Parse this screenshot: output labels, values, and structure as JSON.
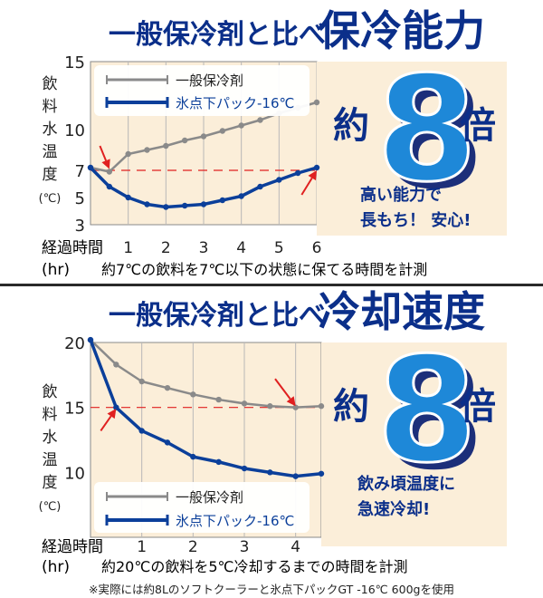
{
  "colors": {
    "comparison_series": "#8a8a8a",
    "product_series": "#0b3f9a",
    "threshold": "#e02020",
    "arrow": "#e02020",
    "chart_background": "#fbeed9",
    "big_number": "#1e88d8",
    "big_number_outline": "#1c2f7a",
    "headline": "#0b2f8a",
    "caption": "#0b2f8a"
  },
  "icons": [
    "red-arrow-icon"
  ],
  "panels": [
    {
      "headline": "一般保冷剤と比べ",
      "headline_strong": "保冷能力",
      "multiplier_prefix": "約",
      "multiplier": "8",
      "multiplier_suffix": "倍",
      "caption_lines": [
        "高い能力で",
        "長もち！ 安心!"
      ],
      "subtitle": "約7℃の飲料を7℃以下の状態に保てる時間を計測"
    },
    {
      "headline": "一般保冷剤と比べ",
      "headline_strong": "冷却速度",
      "multiplier_prefix": "約",
      "multiplier": "8",
      "multiplier_suffix": "倍",
      "caption_lines": [
        "飲み頃温度に",
        "急速冷却!"
      ],
      "subtitle": "約20℃の飲料を5℃冷却するまでの時間を計測"
    }
  ],
  "footnote": "※実際には約8Lのソフトクーラーと氷点下パックGT -16℃ 600gを使用",
  "chart_data": [
    {
      "type": "line",
      "ylabel": [
        "飲",
        "料",
        "水",
        "温",
        "度",
        "(℃)"
      ],
      "xlabel": [
        "経過時間",
        "(hr)"
      ],
      "x_ticks": [
        "1",
        "2",
        "3",
        "4",
        "5",
        "6"
      ],
      "y_ticks": [
        "15",
        "10",
        "7",
        "5",
        "3"
      ],
      "y_tick_values": [
        15,
        10,
        7,
        5,
        3
      ],
      "xlim": [
        0,
        6
      ],
      "ylim": [
        3,
        15
      ],
      "threshold": 7,
      "legend_position": "top-left",
      "series": [
        {
          "name": "一般保冷剤",
          "color_key": "comparison_series",
          "x": [
            0,
            0.5,
            1,
            1.5,
            2,
            2.5,
            3,
            3.5,
            4,
            4.5,
            5,
            5.5,
            6
          ],
          "y": [
            7.2,
            6.9,
            8.2,
            8.5,
            8.8,
            9.2,
            9.5,
            9.9,
            10.3,
            10.7,
            11.2,
            11.6,
            12.0
          ]
        },
        {
          "name": "氷点下パック-16℃",
          "color_key": "product_series",
          "x": [
            0,
            0.5,
            1,
            1.5,
            2,
            2.5,
            3,
            3.5,
            4,
            4.5,
            5,
            5.5,
            6
          ],
          "y": [
            7.2,
            5.8,
            5.0,
            4.5,
            4.3,
            4.4,
            4.5,
            4.8,
            5.1,
            5.8,
            6.3,
            6.8,
            7.2
          ]
        }
      ],
      "arrows": [
        {
          "from": [
            0.25,
            8.8
          ],
          "to": [
            0.5,
            7.1
          ]
        },
        {
          "from": [
            5.6,
            5.2
          ],
          "to": [
            6.0,
            7.0
          ]
        }
      ]
    },
    {
      "type": "line",
      "ylabel": [
        "飲",
        "料",
        "水",
        "温",
        "度",
        "(℃)"
      ],
      "xlabel": [
        "経過時間",
        "(hr)"
      ],
      "x_ticks": [
        "1",
        "2",
        "3",
        "4"
      ],
      "y_ticks": [
        "20",
        "15",
        "10"
      ],
      "y_tick_values": [
        20,
        15,
        10
      ],
      "xlim": [
        0,
        4.5
      ],
      "ylim": [
        5,
        20
      ],
      "threshold": 15,
      "legend_position": "bottom-left",
      "series": [
        {
          "name": "一般保冷剤",
          "color_key": "comparison_series",
          "x": [
            0,
            0.5,
            1,
            1.5,
            2,
            2.5,
            3,
            3.5,
            4,
            4.5
          ],
          "y": [
            20.2,
            18.3,
            17.0,
            16.5,
            16.0,
            15.6,
            15.3,
            15.1,
            15.0,
            15.1
          ]
        },
        {
          "name": "氷点下パック-16℃",
          "color_key": "product_series",
          "x": [
            0,
            0.5,
            1,
            1.5,
            2,
            2.5,
            3,
            3.5,
            4,
            4.5
          ],
          "y": [
            20.2,
            15.0,
            13.2,
            12.3,
            11.2,
            10.8,
            10.3,
            10.0,
            9.7,
            9.9
          ]
        }
      ],
      "arrows": [
        {
          "from": [
            0.2,
            13.2
          ],
          "to": [
            0.5,
            14.9
          ]
        },
        {
          "from": [
            3.6,
            17.2
          ],
          "to": [
            4.0,
            15.1
          ]
        }
      ]
    }
  ]
}
